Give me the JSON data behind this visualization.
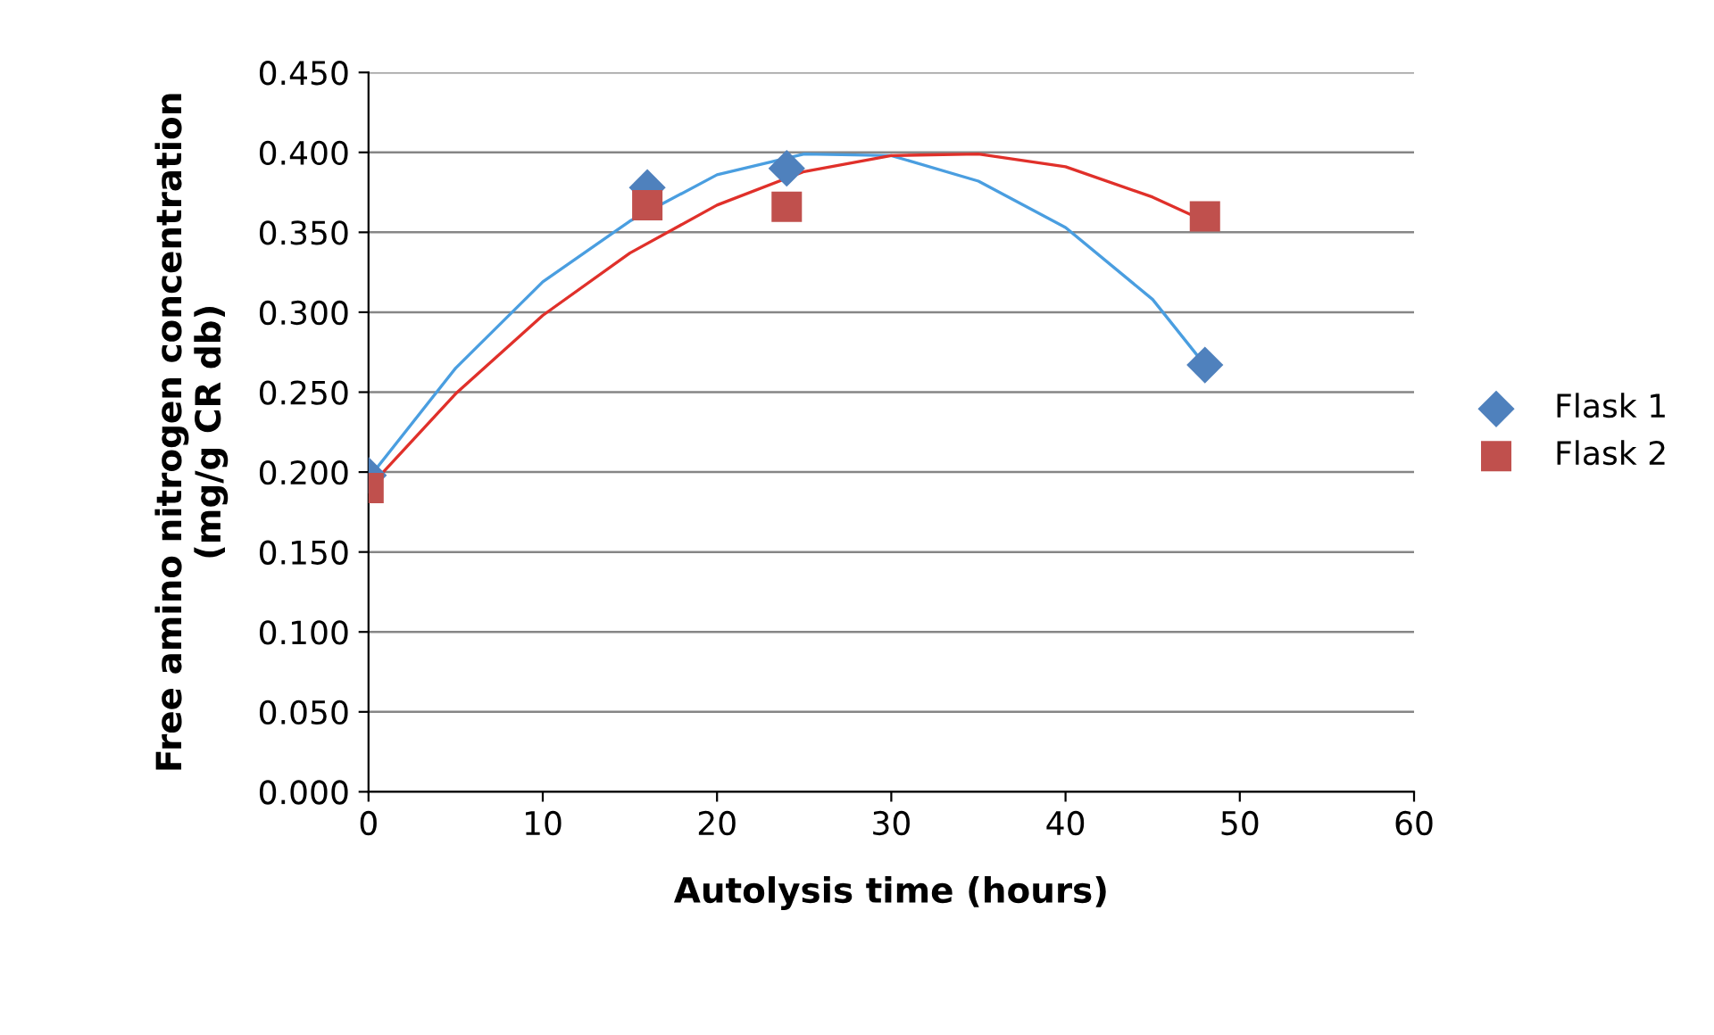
{
  "chart_data": {
    "type": "scatter",
    "xlabel": "Autolysis time (hours)",
    "ylabel": "Free amino nitrogen concentration\n(mg/g CR db)",
    "xlim": [
      0,
      60
    ],
    "xticks": [
      0,
      10,
      20,
      30,
      40,
      50,
      60
    ],
    "ylim": [
      0,
      0.45
    ],
    "yticks": [
      {
        "value": 0,
        "label": "0.000"
      },
      {
        "value": 0.05,
        "label": "0.050"
      },
      {
        "value": 0.1,
        "label": "0.100"
      },
      {
        "value": 0.15,
        "label": "0.150"
      },
      {
        "value": 0.2,
        "label": "0.200"
      },
      {
        "value": 0.25,
        "label": "0.250"
      },
      {
        "value": 0.3,
        "label": "0.300"
      },
      {
        "value": 0.35,
        "label": "0.350"
      },
      {
        "value": 0.4,
        "label": "0.400"
      },
      {
        "value": 0.45,
        "label": "0.450"
      }
    ],
    "grid": "y",
    "legend": "right",
    "series": [
      {
        "type": "line",
        "color": "#4a9ee0",
        "marker": "none",
        "x": [
          0,
          5,
          10,
          15,
          20,
          25,
          30,
          35,
          40,
          45,
          48
        ],
        "values": [
          0.196,
          0.265,
          0.319,
          0.357,
          0.386,
          0.399,
          0.398,
          0.382,
          0.353,
          0.308,
          0.267
        ]
      },
      {
        "type": "line",
        "color": "#e0302a",
        "marker": "none",
        "x": [
          0,
          5,
          10,
          15,
          20,
          25,
          30,
          35,
          40,
          45,
          48
        ],
        "values": [
          0.19,
          0.249,
          0.298,
          0.337,
          0.367,
          0.388,
          0.398,
          0.399,
          0.391,
          0.372,
          0.357
        ]
      },
      {
        "name": "Flask 1",
        "color": "#4f81bd",
        "marker": "diamond",
        "x": [
          0,
          16,
          24,
          48
        ],
        "values": [
          0.198,
          0.378,
          0.39,
          0.267
        ]
      },
      {
        "name": "Flask 2",
        "color": "#c0504d",
        "marker": "square",
        "x": [
          0,
          16,
          24,
          48
        ],
        "values": [
          0.19,
          0.367,
          0.366,
          0.36
        ]
      }
    ]
  }
}
